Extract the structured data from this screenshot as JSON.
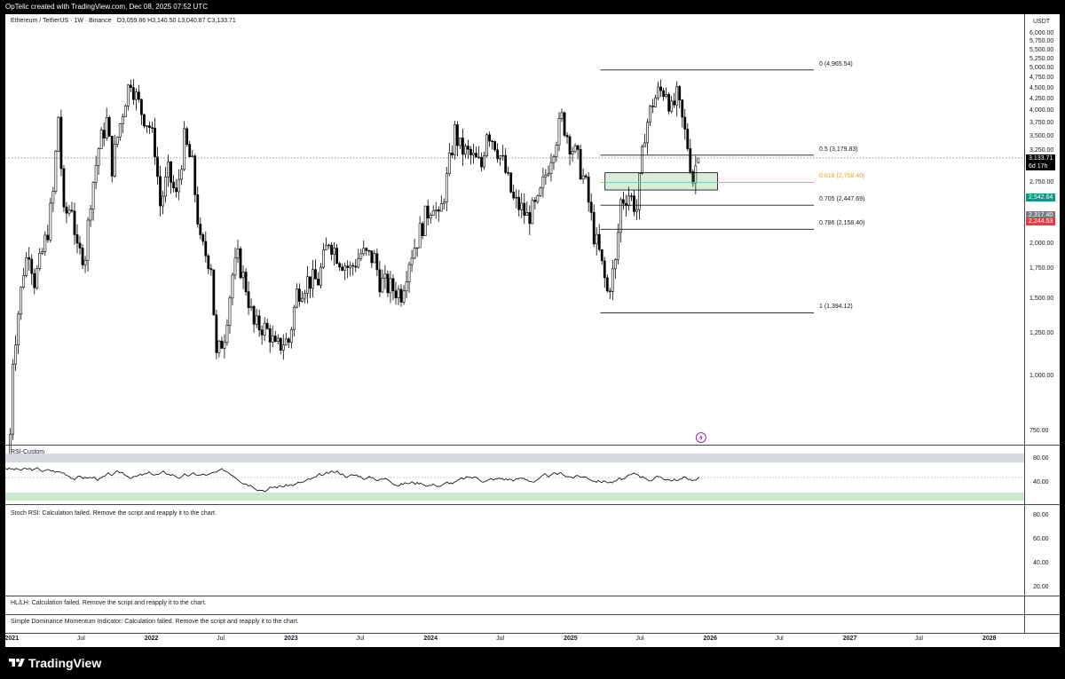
{
  "header": {
    "caption": "OpTelic created with TradingView.com, Dec 08, 2025 07:52 UTC"
  },
  "footer": {
    "brand": "TradingView"
  },
  "main_panel": {
    "title": "Ethereum / TetherUS · 1W · Binance",
    "ohlc": "O3,059.86  H3,140.50  L3,040.87  C3,133.71",
    "currency": "USDT",
    "price_ticks": [
      "6,000.00",
      "5,750.00",
      "5,500.00",
      "5,250.00",
      "5,000.00",
      "4,750.00",
      "4,500.00",
      "4,250.00",
      "4,000.00",
      "3,750.00",
      "3,500.00",
      "3,250.00",
      "2,750.00",
      "2,250.00",
      "2,000.00",
      "1,750.00",
      "1,500.00",
      "1,250.00",
      "1,000.00",
      "750.00"
    ],
    "price_tick_values": [
      6000,
      5750,
      5500,
      5250,
      5000,
      4750,
      4500,
      4250,
      4000,
      3750,
      3500,
      3250,
      2750,
      2250,
      2000,
      1750,
      1500,
      1250,
      1000,
      750
    ],
    "last_price": {
      "label": "3,133.71",
      "countdown": "6d 17h",
      "value": 3133.71,
      "color": "#000000"
    },
    "tags": [
      {
        "label": "2,542.64",
        "value": 2542.64,
        "color": "#089981"
      },
      {
        "label": "2,317.40",
        "value": 2317.4,
        "color": "#787b86"
      },
      {
        "label": "2,244.53",
        "value": 2244.53,
        "color": "#f23645"
      }
    ],
    "fib_levels": [
      {
        "label": "0 (4,965.54)",
        "value": 4965.54,
        "color": "#131722"
      },
      {
        "label": "0.5 (3,179.83)",
        "value": 3179.83,
        "color": "#131722"
      },
      {
        "label": "0.618 (2,758.40)",
        "value": 2758.4,
        "color": "#f7a600"
      },
      {
        "label": "0.705 (2,447.69)",
        "value": 2447.69,
        "color": "#131722"
      },
      {
        "label": "0.786 (2,158.40)",
        "value": 2158.4,
        "color": "#131722"
      },
      {
        "label": "1 (1,394.12)",
        "value": 1394.12,
        "color": "#131722"
      }
    ]
  },
  "rsi_panel": {
    "title": "RSI-Custom",
    "ticks": [
      "80.00",
      "40.00"
    ]
  },
  "stoch_panel": {
    "title": "Stoch RSI: Calculation failed. Remove the script and reapply it to the chart.",
    "ticks": [
      "80.00",
      "60.00",
      "40.00",
      "20.00"
    ]
  },
  "hl_panel": {
    "title": "HL/LH: Calculation failed. Remove the script and reapply it to the chart."
  },
  "sdm_panel": {
    "title": "Simple Dominance Momentum Indicator: Calculation failed. Remove the script and reapply it to the chart."
  },
  "time_axis": [
    {
      "label": "2021",
      "year": true
    },
    {
      "label": "Jul",
      "year": false
    },
    {
      "label": "2022",
      "year": true
    },
    {
      "label": "Jul",
      "year": false
    },
    {
      "label": "2023",
      "year": true
    },
    {
      "label": "Jul",
      "year": false
    },
    {
      "label": "2024",
      "year": true
    },
    {
      "label": "Jul",
      "year": false
    },
    {
      "label": "2025",
      "year": true
    },
    {
      "label": "Jul",
      "year": false
    },
    {
      "label": "2026",
      "year": true
    },
    {
      "label": "Jul",
      "year": false
    },
    {
      "label": "2027",
      "year": true
    },
    {
      "label": "Jul",
      "year": false
    },
    {
      "label": "2028",
      "year": true
    }
  ],
  "chart_data": {
    "type": "candlestick",
    "timeframe": "1W",
    "x_range": [
      "2020-12-15",
      "2028-04-01"
    ],
    "ylim": [
      650,
      6250
    ],
    "y_scale": "log",
    "grid": false,
    "weekly_closes": [
      {
        "t": "2020-12-28",
        "c": 740
      },
      {
        "t": "2021-01-04",
        "c": 1100
      },
      {
        "t": "2021-01-18",
        "c": 1400
      },
      {
        "t": "2021-02-01",
        "c": 1750
      },
      {
        "t": "2021-02-15",
        "c": 1950
      },
      {
        "t": "2021-03-01",
        "c": 1650
      },
      {
        "t": "2021-03-15",
        "c": 1800
      },
      {
        "t": "2021-04-05",
        "c": 2150
      },
      {
        "t": "2021-04-19",
        "c": 2600
      },
      {
        "t": "2021-05-03",
        "c": 3900
      },
      {
        "t": "2021-05-17",
        "c": 2300
      },
      {
        "t": "2021-06-07",
        "c": 2450
      },
      {
        "t": "2021-06-21",
        "c": 1900
      },
      {
        "t": "2021-07-12",
        "c": 1900
      },
      {
        "t": "2021-07-26",
        "c": 2550
      },
      {
        "t": "2021-08-16",
        "c": 3300
      },
      {
        "t": "2021-09-06",
        "c": 3800
      },
      {
        "t": "2021-09-20",
        "c": 3000
      },
      {
        "t": "2021-10-04",
        "c": 3500
      },
      {
        "t": "2021-10-25",
        "c": 4300
      },
      {
        "t": "2021-11-08",
        "c": 4750
      },
      {
        "t": "2021-11-22",
        "c": 4300
      },
      {
        "t": "2021-12-06",
        "c": 4000
      },
      {
        "t": "2021-12-27",
        "c": 3700
      },
      {
        "t": "2022-01-10",
        "c": 3300
      },
      {
        "t": "2022-01-24",
        "c": 2450
      },
      {
        "t": "2022-02-14",
        "c": 2900
      },
      {
        "t": "2022-03-07",
        "c": 2550
      },
      {
        "t": "2022-03-28",
        "c": 3450
      },
      {
        "t": "2022-04-18",
        "c": 3000
      },
      {
        "t": "2022-05-09",
        "c": 2000
      },
      {
        "t": "2022-06-06",
        "c": 1800
      },
      {
        "t": "2022-06-20",
        "c": 1100
      },
      {
        "t": "2022-07-11",
        "c": 1250
      },
      {
        "t": "2022-08-01",
        "c": 1700
      },
      {
        "t": "2022-08-15",
        "c": 1850
      },
      {
        "t": "2022-09-05",
        "c": 1600
      },
      {
        "t": "2022-09-26",
        "c": 1300
      },
      {
        "t": "2022-10-17",
        "c": 1300
      },
      {
        "t": "2022-11-07",
        "c": 1250
      },
      {
        "t": "2022-11-21",
        "c": 1150
      },
      {
        "t": "2022-12-12",
        "c": 1200
      },
      {
        "t": "2022-12-26",
        "c": 1200
      },
      {
        "t": "2023-01-16",
        "c": 1550
      },
      {
        "t": "2023-02-13",
        "c": 1650
      },
      {
        "t": "2023-03-13",
        "c": 1650
      },
      {
        "t": "2023-04-10",
        "c": 2050
      },
      {
        "t": "2023-05-08",
        "c": 1850
      },
      {
        "t": "2023-06-05",
        "c": 1750
      },
      {
        "t": "2023-07-03",
        "c": 1900
      },
      {
        "t": "2023-08-07",
        "c": 1850
      },
      {
        "t": "2023-08-21",
        "c": 1650
      },
      {
        "t": "2023-09-11",
        "c": 1600
      },
      {
        "t": "2023-10-16",
        "c": 1550
      },
      {
        "t": "2023-11-06",
        "c": 1850
      },
      {
        "t": "2023-11-27",
        "c": 2050
      },
      {
        "t": "2023-12-18",
        "c": 2300
      },
      {
        "t": "2024-01-08",
        "c": 2500
      },
      {
        "t": "2024-01-22",
        "c": 2250
      },
      {
        "t": "2024-02-12",
        "c": 2800
      },
      {
        "t": "2024-03-04",
        "c": 3600
      },
      {
        "t": "2024-03-18",
        "c": 3300
      },
      {
        "t": "2024-04-08",
        "c": 3200
      },
      {
        "t": "2024-05-13",
        "c": 3000
      },
      {
        "t": "2024-05-27",
        "c": 3650
      },
      {
        "t": "2024-06-17",
        "c": 3400
      },
      {
        "t": "2024-07-08",
        "c": 3050
      },
      {
        "t": "2024-08-05",
        "c": 2500
      },
      {
        "t": "2024-08-26",
        "c": 2400
      },
      {
        "t": "2024-09-09",
        "c": 2300
      },
      {
        "t": "2024-10-07",
        "c": 2450
      },
      {
        "t": "2024-11-11",
        "c": 3200
      },
      {
        "t": "2024-12-09",
        "c": 3850
      },
      {
        "t": "2024-12-30",
        "c": 3400
      },
      {
        "t": "2025-01-20",
        "c": 3100
      },
      {
        "t": "2025-02-10",
        "c": 2700
      },
      {
        "t": "2025-03-03",
        "c": 2100
      },
      {
        "t": "2025-03-17",
        "c": 1900
      },
      {
        "t": "2025-04-07",
        "c": 1550
      },
      {
        "t": "2025-04-28",
        "c": 1800
      },
      {
        "t": "2025-05-12",
        "c": 2500
      },
      {
        "t": "2025-06-02",
        "c": 2600
      },
      {
        "t": "2025-06-23",
        "c": 2400
      },
      {
        "t": "2025-07-14",
        "c": 3600
      },
      {
        "t": "2025-08-04",
        "c": 4200
      },
      {
        "t": "2025-08-18",
        "c": 4400
      },
      {
        "t": "2025-09-08",
        "c": 4500
      },
      {
        "t": "2025-09-22",
        "c": 4000
      },
      {
        "t": "2025-10-06",
        "c": 4300
      },
      {
        "t": "2025-10-20",
        "c": 3800
      },
      {
        "t": "2025-11-03",
        "c": 3350
      },
      {
        "t": "2025-11-17",
        "c": 2800
      },
      {
        "t": "2025-11-24",
        "c": 3000
      },
      {
        "t": "2025-12-01",
        "c": 3133.71
      }
    ],
    "fib_retracement": {
      "anchor_high": 4965.54,
      "anchor_low": 1394.12,
      "levels": [
        0,
        0.5,
        0.618,
        0.705,
        0.786,
        1
      ]
    },
    "zone": {
      "top": 2900,
      "bottom": 2650,
      "x_start": "2025-04-01",
      "x_end": "2026-01-20"
    }
  }
}
